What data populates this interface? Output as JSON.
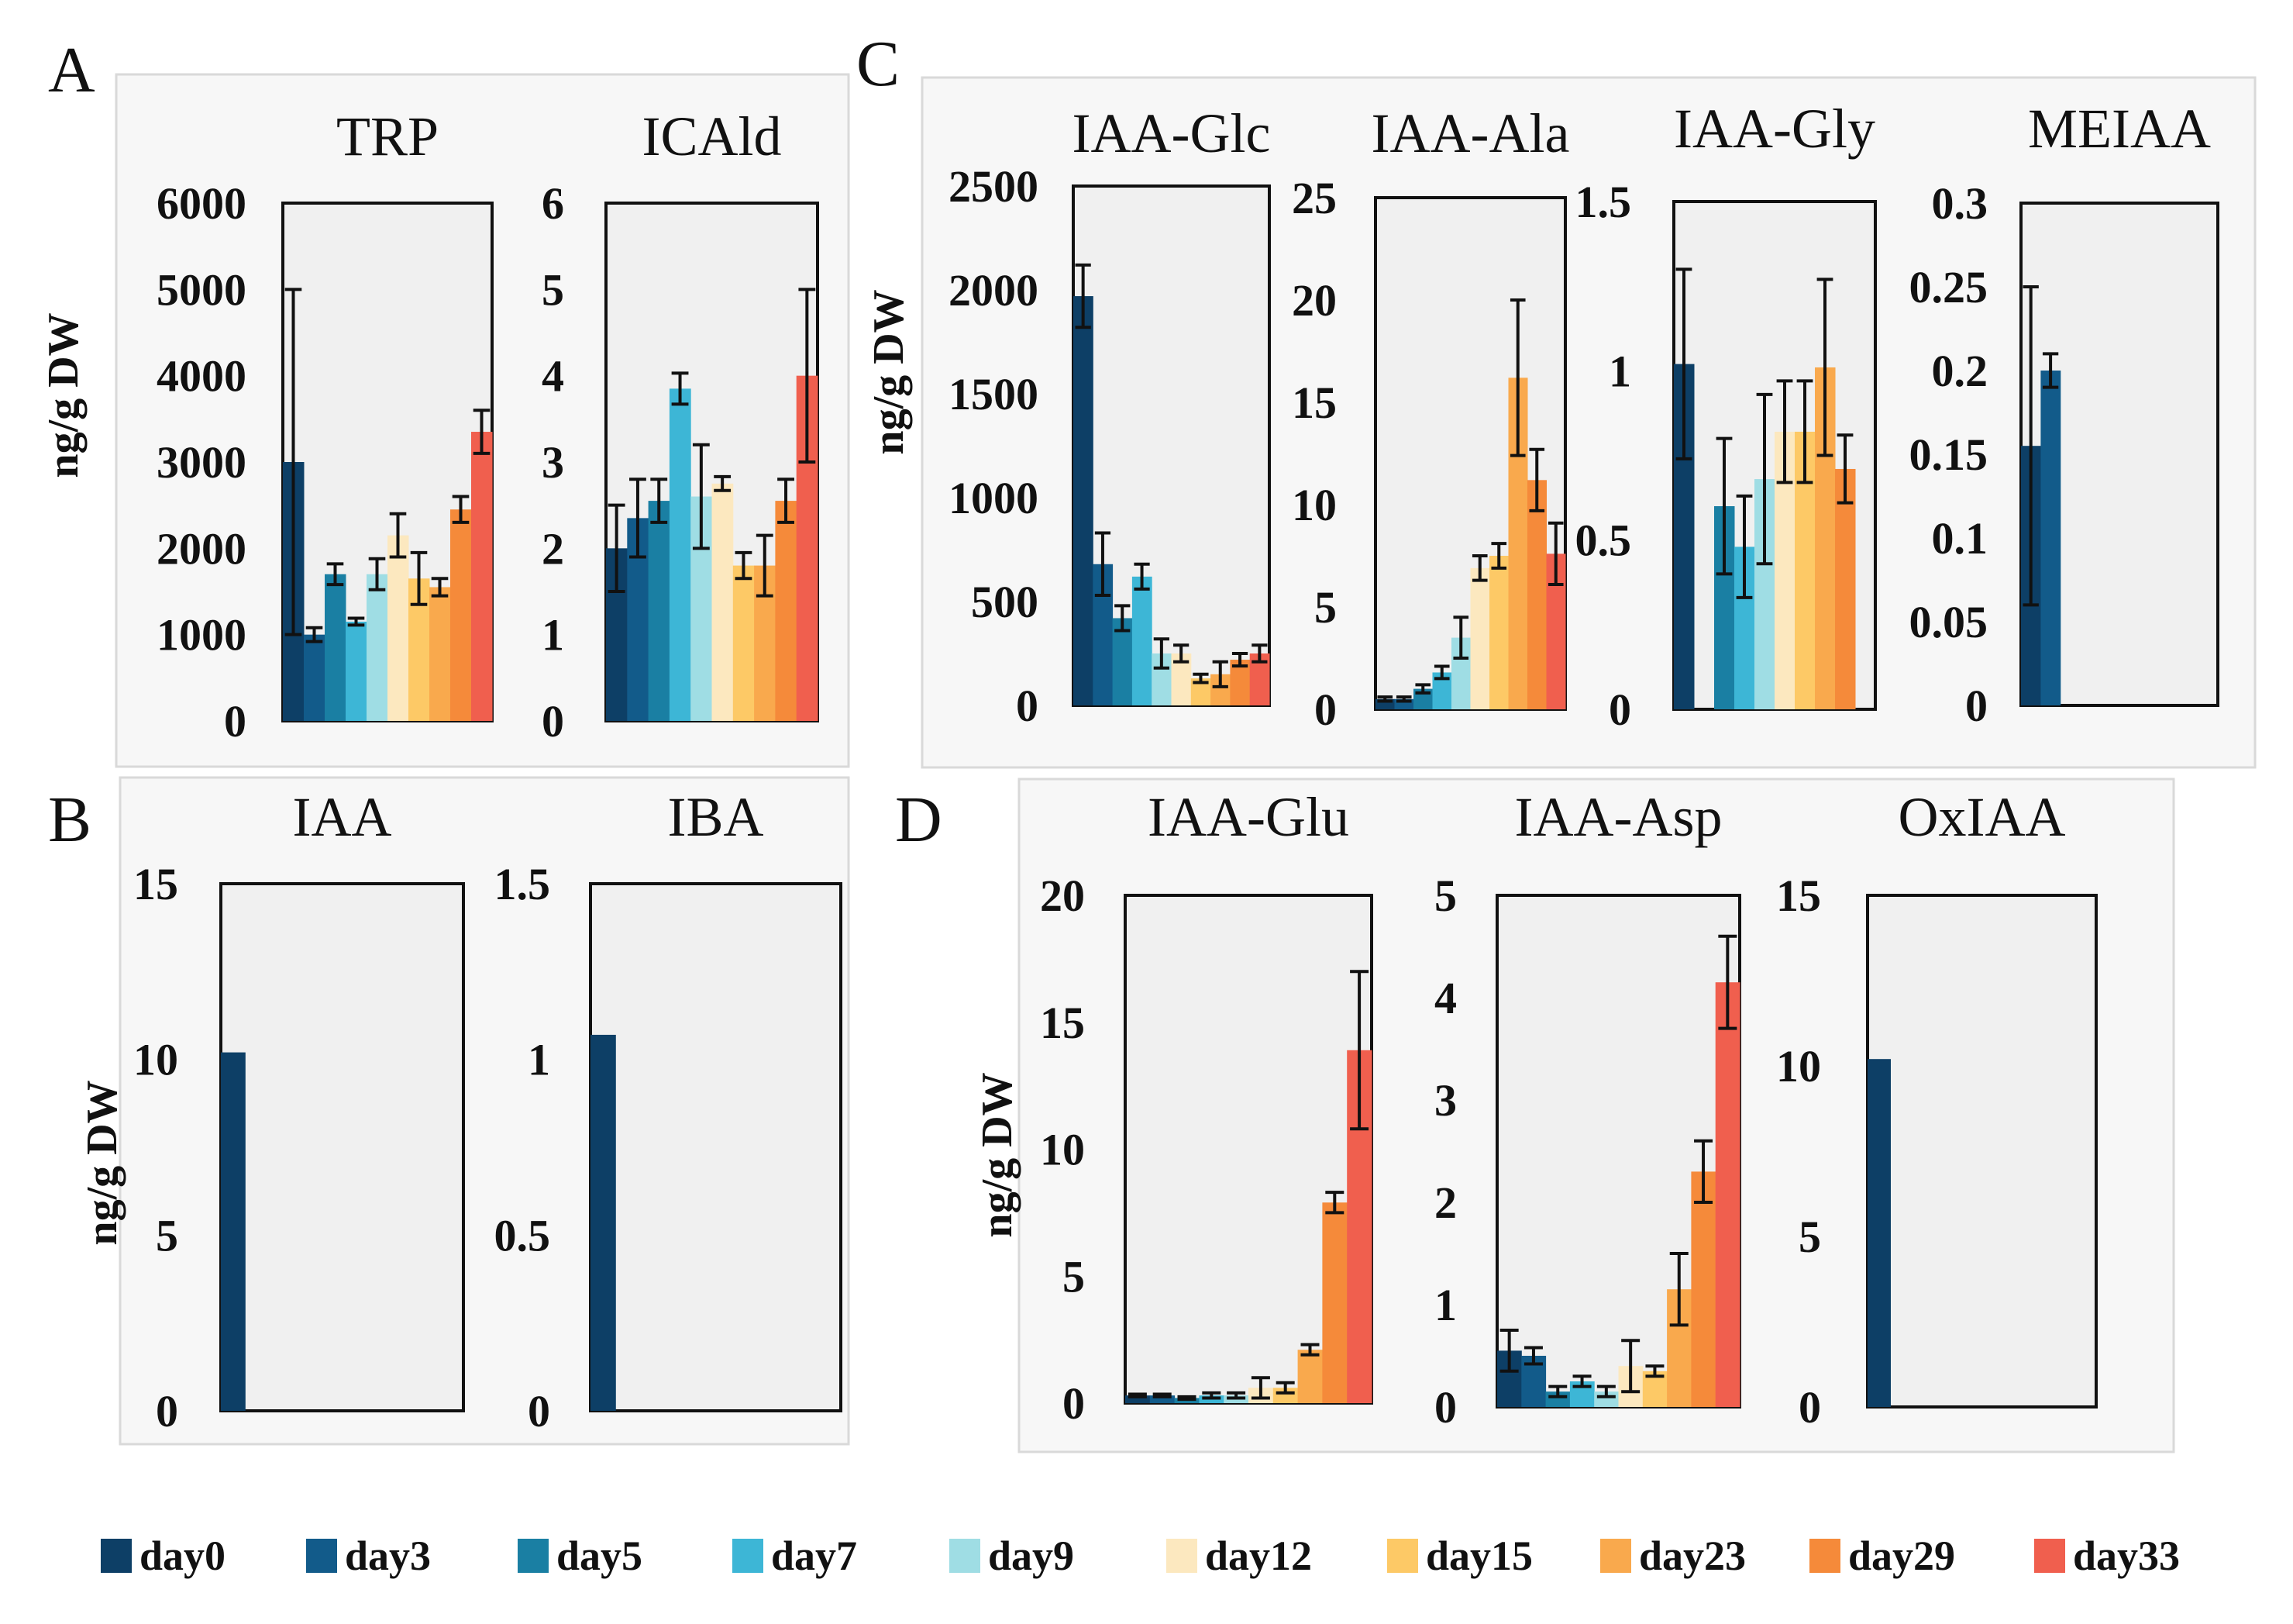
{
  "figure": {
    "panels": [
      {
        "letter": "A"
      },
      {
        "letter": "B"
      },
      {
        "letter": "C"
      },
      {
        "letter": "D"
      }
    ],
    "legend": {
      "items": [
        {
          "label": "day0",
          "color": "#0d3f66"
        },
        {
          "label": "day3",
          "color": "#125b8a"
        },
        {
          "label": "day5",
          "color": "#1a7fa3"
        },
        {
          "label": "day7",
          "color": "#3db6d6"
        },
        {
          "label": "day9",
          "color": "#9fdde4"
        },
        {
          "label": "day12",
          "color": "#fce8bf"
        },
        {
          "label": "day15",
          "color": "#fdc966"
        },
        {
          "label": "day23",
          "color": "#f9a94d"
        },
        {
          "label": "day29",
          "color": "#f58a3a"
        },
        {
          "label": "day33",
          "color": "#f05f4e"
        }
      ]
    }
  },
  "chart_data": [
    {
      "type": "bar",
      "panel": "A",
      "title": "TRP",
      "ylabel": "ng/g DW",
      "ylim": [
        0,
        6000
      ],
      "yticks": [
        "0",
        "1000",
        "2000",
        "3000",
        "4000",
        "5000",
        "6000"
      ],
      "categories": [
        "day0",
        "day3",
        "day5",
        "day7",
        "day9",
        "day12",
        "day15",
        "day23",
        "day29",
        "day33"
      ],
      "values": [
        3000,
        1000,
        1700,
        1150,
        1700,
        2150,
        1650,
        1550,
        2450,
        3350
      ],
      "errors": [
        2000,
        80,
        120,
        40,
        180,
        250,
        300,
        100,
        150,
        250
      ]
    },
    {
      "type": "bar",
      "panel": "A",
      "title": "ICAld",
      "ylim": [
        0,
        6
      ],
      "yticks": [
        "0",
        "1",
        "2",
        "3",
        "4",
        "5",
        "6"
      ],
      "categories": [
        "day0",
        "day3",
        "day5",
        "day7",
        "day9",
        "day12",
        "day15",
        "day23",
        "day29",
        "day33"
      ],
      "values": [
        2.0,
        2.35,
        2.55,
        3.85,
        2.6,
        2.75,
        1.8,
        1.8,
        2.55,
        4.0
      ],
      "errors": [
        0.5,
        0.45,
        0.25,
        0.18,
        0.6,
        0.08,
        0.15,
        0.35,
        0.25,
        1.0
      ]
    },
    {
      "type": "bar",
      "panel": "B",
      "title": "IAA",
      "ylabel": "ng/g DW",
      "ylim": [
        0,
        15
      ],
      "yticks": [
        "0",
        "5",
        "10",
        "15"
      ],
      "categories": [
        "day0",
        "day3",
        "day5",
        "day7",
        "day9",
        "day12",
        "day15",
        "day23",
        "day29",
        "day33"
      ],
      "values": [
        10.2,
        0,
        0,
        0,
        0,
        0,
        0,
        0,
        0,
        0
      ],
      "errors": [
        0,
        0,
        0,
        0,
        0,
        0,
        0,
        0,
        0,
        0
      ]
    },
    {
      "type": "bar",
      "panel": "B",
      "title": "IBA",
      "ylim": [
        0,
        1.5
      ],
      "yticks": [
        "0",
        "0.5",
        "1",
        "1.5"
      ],
      "categories": [
        "day0",
        "day3",
        "day5",
        "day7",
        "day9",
        "day12",
        "day15",
        "day23",
        "day29",
        "day33"
      ],
      "values": [
        1.07,
        0,
        0,
        0,
        0,
        0,
        0,
        0,
        0,
        0
      ],
      "errors": [
        0,
        0,
        0,
        0,
        0,
        0,
        0,
        0,
        0,
        0
      ]
    },
    {
      "type": "bar",
      "panel": "C",
      "title": "IAA-Glc",
      "ylabel": "ng/g DW",
      "ylim": [
        0,
        2500
      ],
      "yticks": [
        "0",
        "500",
        "1000",
        "1500",
        "2000",
        "2500"
      ],
      "categories": [
        "day0",
        "day3",
        "day5",
        "day7",
        "day9",
        "day12",
        "day15",
        "day23",
        "day29",
        "day33"
      ],
      "values": [
        1970,
        680,
        420,
        620,
        250,
        250,
        130,
        150,
        220,
        250
      ],
      "errors": [
        150,
        150,
        60,
        60,
        70,
        40,
        20,
        60,
        30,
        40
      ]
    },
    {
      "type": "bar",
      "panel": "C",
      "title": "IAA-Ala",
      "ylim": [
        0,
        25
      ],
      "yticks": [
        "0",
        "5",
        "10",
        "15",
        "20",
        "25"
      ],
      "categories": [
        "day0",
        "day3",
        "day5",
        "day7",
        "day9",
        "day12",
        "day15",
        "day23",
        "day29",
        "day33"
      ],
      "values": [
        0.5,
        0.5,
        1.0,
        1.8,
        3.5,
        6.9,
        7.5,
        16.2,
        11.2,
        7.6
      ],
      "errors": [
        0.1,
        0.1,
        0.2,
        0.3,
        1.0,
        0.6,
        0.6,
        3.8,
        1.5,
        1.5
      ]
    },
    {
      "type": "bar",
      "panel": "C",
      "title": "IAA-Gly",
      "ylim": [
        0,
        1.5
      ],
      "yticks": [
        "0",
        "0.5",
        "1",
        "1.5"
      ],
      "categories": [
        "day0",
        "day3",
        "day5",
        "day7",
        "day9",
        "day12",
        "day15",
        "day23",
        "day29",
        "day33"
      ],
      "values": [
        1.02,
        0,
        0.6,
        0.48,
        0.68,
        0.82,
        0.82,
        1.01,
        0.71,
        0
      ],
      "errors": [
        0.28,
        0,
        0.2,
        0.15,
        0.25,
        0.15,
        0.15,
        0.26,
        0.1,
        0
      ]
    },
    {
      "type": "bar",
      "panel": "C",
      "title": "MEIAA",
      "ylim": [
        0,
        0.3
      ],
      "yticks": [
        "0",
        "0.05",
        "0.1",
        "0.15",
        "0.2",
        "0.25",
        "0.3"
      ],
      "categories": [
        "day0",
        "day3",
        "day5",
        "day7",
        "day9",
        "day12",
        "day15",
        "day23",
        "day29",
        "day33"
      ],
      "values": [
        0.155,
        0.2,
        0,
        0,
        0,
        0,
        0,
        0,
        0,
        0
      ],
      "errors": [
        0.095,
        0.01,
        0,
        0,
        0,
        0,
        0,
        0,
        0,
        0
      ]
    },
    {
      "type": "bar",
      "panel": "D",
      "title": "IAA-Glu",
      "ylabel": "ng/g DW",
      "ylim": [
        0,
        20
      ],
      "yticks": [
        "0",
        "5",
        "10",
        "15",
        "20"
      ],
      "categories": [
        "day0",
        "day3",
        "day5",
        "day7",
        "day9",
        "day12",
        "day15",
        "day23",
        "day29",
        "day33"
      ],
      "values": [
        0.3,
        0.3,
        0.2,
        0.3,
        0.3,
        0.6,
        0.6,
        2.1,
        7.9,
        13.9
      ],
      "errors": [
        0.05,
        0.05,
        0.05,
        0.1,
        0.1,
        0.4,
        0.2,
        0.2,
        0.4,
        3.1
      ]
    },
    {
      "type": "bar",
      "panel": "D",
      "title": "IAA-Asp",
      "ylim": [
        0,
        5
      ],
      "yticks": [
        "0",
        "1",
        "2",
        "3",
        "4",
        "5"
      ],
      "categories": [
        "day0",
        "day3",
        "day5",
        "day7",
        "day9",
        "day12",
        "day15",
        "day23",
        "day29",
        "day33"
      ],
      "values": [
        0.55,
        0.5,
        0.15,
        0.25,
        0.15,
        0.4,
        0.35,
        1.15,
        2.3,
        4.15
      ],
      "errors": [
        0.2,
        0.08,
        0.05,
        0.05,
        0.05,
        0.25,
        0.05,
        0.35,
        0.3,
        0.45
      ]
    },
    {
      "type": "bar",
      "panel": "D",
      "title": "OxIAA",
      "ylim": [
        0,
        15
      ],
      "yticks": [
        "0",
        "5",
        "10",
        "15"
      ],
      "categories": [
        "day0",
        "day3",
        "day5",
        "day7",
        "day9",
        "day12",
        "day15",
        "day23",
        "day29",
        "day33"
      ],
      "values": [
        10.2,
        0,
        0,
        0,
        0,
        0,
        0,
        0,
        0,
        0
      ],
      "errors": [
        0,
        0,
        0,
        0,
        0,
        0,
        0,
        0,
        0,
        0
      ]
    }
  ]
}
